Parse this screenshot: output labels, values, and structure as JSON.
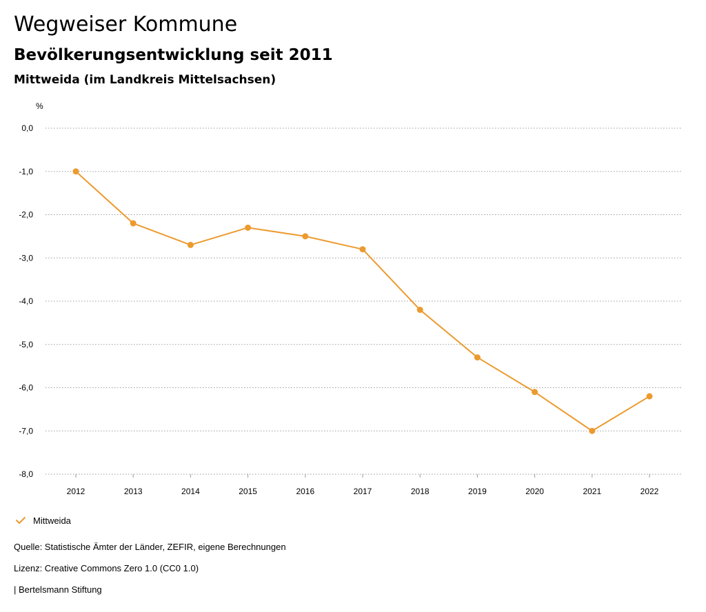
{
  "header": {
    "title": "Wegweiser Kommune",
    "subtitle": "Bevölkerungsentwicklung seit 2011",
    "region": "Mittweida (im Landkreis Mittelsachsen)"
  },
  "chart_data": {
    "type": "line",
    "y_unit": "%",
    "x": [
      "2012",
      "2013",
      "2014",
      "2015",
      "2016",
      "2017",
      "2018",
      "2019",
      "2020",
      "2021",
      "2022"
    ],
    "series": [
      {
        "name": "Mittweida",
        "color": "#EC9A2E",
        "values": [
          -1.0,
          -2.2,
          -2.7,
          -2.3,
          -2.5,
          -2.8,
          -4.2,
          -5.3,
          -6.1,
          -7.0,
          -6.2
        ]
      }
    ],
    "ylim": [
      -8,
      0
    ],
    "y_ticks": [
      "0,0",
      "-1,0",
      "-2,0",
      "-3,0",
      "-4,0",
      "-5,0",
      "-6,0",
      "-7,0",
      "-8,0"
    ],
    "grid": true,
    "legend_position": "bottom-left"
  },
  "footer": {
    "source": "Quelle: Statistische Ämter der Länder, ZEFIR, eigene Berechnungen",
    "license": "Lizenz: Creative Commons Zero 1.0 (CC0 1.0)",
    "brand": "| Bertelsmann Stiftung"
  }
}
